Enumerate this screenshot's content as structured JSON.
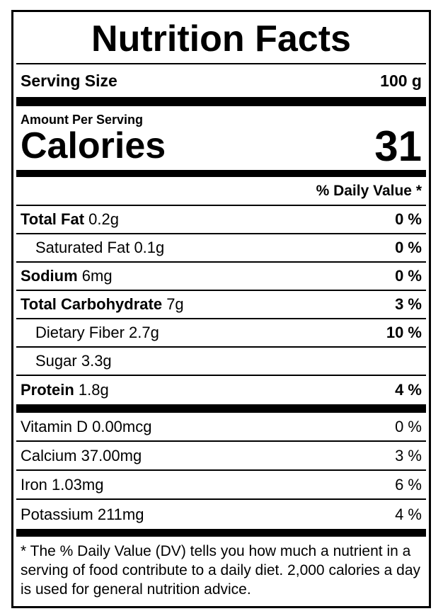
{
  "nutrition": {
    "title": "Nutrition Facts",
    "serving": {
      "label": "Serving Size",
      "value": "100 g"
    },
    "amount_per_serving_label": "Amount Per Serving",
    "calories": {
      "label": "Calories",
      "value": "31"
    },
    "daily_value_header": "% Daily Value *",
    "rows": [
      {
        "name": "Total Fat",
        "amount": "0.2g",
        "dv": "0 %"
      },
      {
        "name": "Saturated Fat",
        "amount": "0.1g",
        "dv": "0 %"
      },
      {
        "name": "Sodium",
        "amount": "6mg",
        "dv": "0 %"
      },
      {
        "name": "Total Carbohydrate",
        "amount": "7g",
        "dv": "3 %"
      },
      {
        "name": "Dietary Fiber",
        "amount": "2.7g",
        "dv": "10 %"
      },
      {
        "name": "Sugar",
        "amount": "3.3g",
        "dv": ""
      },
      {
        "name": "Protein",
        "amount": "1.8g",
        "dv": "4 %"
      }
    ],
    "micronutrients": [
      {
        "name": "Vitamin D",
        "amount": "0.00mcg",
        "dv": "0 %"
      },
      {
        "name": "Calcium",
        "amount": "37.00mg",
        "dv": "3 %"
      },
      {
        "name": "Iron",
        "amount": "1.03mg",
        "dv": "6 %"
      },
      {
        "name": "Potassium",
        "amount": "211mg",
        "dv": "4 %"
      }
    ],
    "footnote": "* The % Daily Value (DV) tells you how much a nutrient in a serving of food contribute to a daily diet. 2,000 calories a day is used for general nutrition advice.",
    "colors": {
      "text": "#000000",
      "background": "#ffffff",
      "border": "#000000"
    }
  }
}
